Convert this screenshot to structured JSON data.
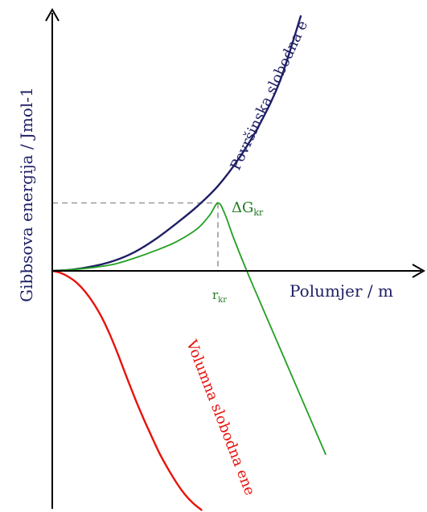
{
  "chart_data": {
    "type": "line",
    "xlabel": "Polumjer / m",
    "ylabel": "Gibbsova energija / Jmol-1",
    "critical": {
      "r_label": "r",
      "r_sub": "kr",
      "g_label": "ΔG",
      "g_sub": "kr",
      "r": 2.0,
      "g": 1.0
    },
    "xlim": [
      0,
      3.2
    ],
    "ylim": [
      -3.7,
      3.9
    ],
    "grid": false,
    "series": [
      {
        "name": "Površinska slobodna energija",
        "color": "#1f1f66",
        "x": [
          0,
          0.25,
          0.5,
          0.75,
          1.0,
          1.25,
          1.5,
          1.75,
          2.0,
          2.25,
          2.5,
          2.75,
          3.0
        ],
        "y": [
          0,
          0.02,
          0.07,
          0.15,
          0.28,
          0.47,
          0.7,
          0.95,
          1.25,
          1.65,
          2.15,
          2.8,
          3.75
        ]
      },
      {
        "name": "Volumna slobodna energija",
        "color": "#e8120c",
        "x": [
          0,
          0.1,
          0.2,
          0.3,
          0.4,
          0.5,
          0.6,
          0.7,
          0.8,
          0.9,
          1.0,
          1.1,
          1.2,
          1.3,
          1.4,
          1.5,
          1.6,
          1.7,
          1.8
        ],
        "y": [
          0,
          -0.03,
          -0.09,
          -0.18,
          -0.31,
          -0.48,
          -0.69,
          -0.95,
          -1.25,
          -1.57,
          -1.88,
          -2.17,
          -2.44,
          -2.7,
          -2.92,
          -3.12,
          -3.29,
          -3.42,
          -3.52
        ]
      },
      {
        "name": "",
        "color": "#22a022",
        "x": [
          0,
          0.25,
          0.5,
          0.75,
          1.0,
          1.25,
          1.5,
          1.75,
          1.9,
          2.0,
          2.08,
          2.2,
          2.4,
          2.7,
          3.0,
          3.3
        ],
        "y": [
          0,
          0.02,
          0.05,
          0.1,
          0.19,
          0.3,
          0.43,
          0.62,
          0.82,
          1.0,
          0.85,
          0.45,
          -0.15,
          -1.0,
          -1.85,
          -2.7
        ]
      }
    ]
  }
}
